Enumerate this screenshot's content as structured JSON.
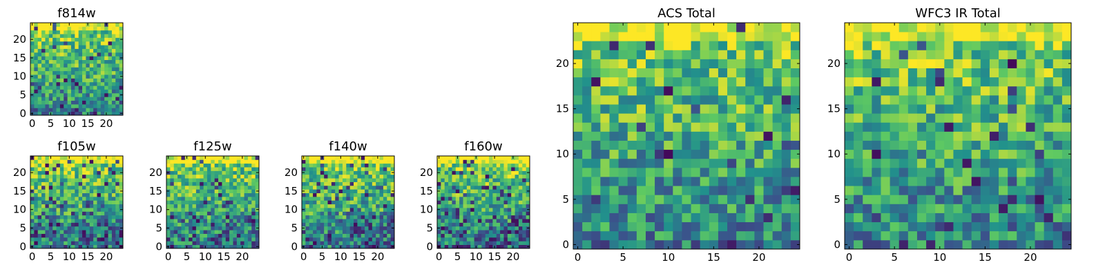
{
  "figure": {
    "colormap": "viridis",
    "colormap_stops": [
      "#440154",
      "#3b528b",
      "#21918c",
      "#5ec962",
      "#fde725"
    ],
    "background": "#ffffff"
  },
  "chart_data": [
    {
      "type": "heatmap",
      "title": "f814w",
      "grid_size": 25,
      "xlim": [
        0,
        24
      ],
      "ylim": [
        0,
        24
      ],
      "xticks": [
        0,
        5,
        10,
        15,
        20
      ],
      "yticks": [
        0,
        5,
        10,
        15,
        20
      ],
      "value_range": [
        0,
        1
      ],
      "pattern": "uniform noise, bright throughout, few dark pixels near bottom",
      "seed": 11,
      "dark_fraction": 0.05
    },
    {
      "type": "heatmap",
      "title": "f105w",
      "grid_size": 25,
      "xlim": [
        0,
        24
      ],
      "ylim": [
        0,
        24
      ],
      "xticks": [
        0,
        5,
        10,
        15,
        20
      ],
      "yticks": [
        0,
        5,
        10,
        15,
        20
      ],
      "value_range": [
        0,
        1
      ],
      "pattern": "bright top rows, dark patches lower right",
      "seed": 23,
      "dark_fraction": 0.12
    },
    {
      "type": "heatmap",
      "title": "f125w",
      "grid_size": 25,
      "xlim": [
        0,
        24
      ],
      "ylim": [
        0,
        24
      ],
      "xticks": [
        0,
        5,
        10,
        15,
        20
      ],
      "yticks": [
        0,
        5,
        10,
        15,
        20
      ],
      "value_range": [
        0,
        1
      ],
      "pattern": "bright top rows, mixed green, few dark pixels",
      "seed": 37,
      "dark_fraction": 0.08
    },
    {
      "type": "heatmap",
      "title": "f140w",
      "grid_size": 25,
      "xlim": [
        0,
        24
      ],
      "ylim": [
        0,
        24
      ],
      "xticks": [
        0,
        5,
        10,
        15,
        20
      ],
      "yticks": [
        0,
        5,
        10,
        15,
        20
      ],
      "value_range": [
        0,
        1
      ],
      "pattern": "bright top, scattered dark blue pixels",
      "seed": 41,
      "dark_fraction": 0.14
    },
    {
      "type": "heatmap",
      "title": "f160w",
      "grid_size": 25,
      "xlim": [
        0,
        24
      ],
      "ylim": [
        0,
        24
      ],
      "xticks": [
        0,
        5,
        10,
        15,
        20
      ],
      "yticks": [
        0,
        5,
        10,
        15,
        20
      ],
      "value_range": [
        0,
        1
      ],
      "pattern": "bright top, darker lower right quadrant",
      "seed": 53,
      "dark_fraction": 0.16
    },
    {
      "type": "heatmap",
      "title": "ACS Total",
      "grid_size": 25,
      "xlim": [
        0,
        24
      ],
      "ylim": [
        0,
        24
      ],
      "xticks": [
        0,
        5,
        10,
        15,
        20
      ],
      "yticks": [
        0,
        5,
        10,
        15,
        20
      ],
      "value_range": [
        0,
        1
      ],
      "pattern": "bright top, greener bottom, dark pixels along bottom rows",
      "seed": 67,
      "dark_fraction": 0.04
    },
    {
      "type": "heatmap",
      "title": "WFC3 IR Total",
      "grid_size": 25,
      "xlim": [
        0,
        24
      ],
      "ylim": [
        0,
        24
      ],
      "xticks": [
        0,
        5,
        10,
        15,
        20
      ],
      "yticks": [
        0,
        5,
        10,
        15,
        20
      ],
      "value_range": [
        0,
        1
      ],
      "pattern": "bright top rows, blue-ish lower right, scattered dark pixels",
      "seed": 79,
      "dark_fraction": 0.05
    }
  ]
}
